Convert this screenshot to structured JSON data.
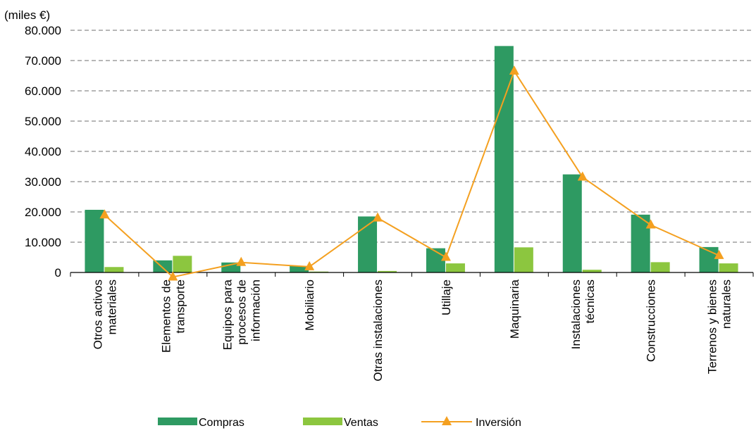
{
  "chart_data": {
    "type": "bar",
    "unit_label": "(miles €)",
    "categories": [
      [
        "Otros activos",
        "materiales"
      ],
      [
        "Elementos de",
        "transporte"
      ],
      [
        "Equipos para",
        "procesos de",
        "información"
      ],
      [
        "Mobiliario"
      ],
      [
        "Otras instalaciones"
      ],
      [
        "Utillaje"
      ],
      [
        "Maquinaria"
      ],
      [
        "Instalaciones",
        "técnicas"
      ],
      [
        "Construcciones"
      ],
      [
        "Terrenos y bienes",
        "naturales"
      ]
    ],
    "ylim": [
      0,
      80000
    ],
    "yticks": [
      0,
      10000,
      20000,
      30000,
      40000,
      50000,
      60000,
      70000,
      80000
    ],
    "ytick_labels": [
      "0",
      "10.000",
      "20.000",
      "30.000",
      "40.000",
      "50.000",
      "60.000",
      "70.000",
      "80.000"
    ],
    "grid": true,
    "legend_position": "bottom",
    "series": [
      {
        "name": "Compras",
        "kind": "bar",
        "color": "#2e9a62",
        "values": [
          20700,
          4000,
          3300,
          2100,
          18500,
          8000,
          74800,
          32400,
          19100,
          8400
        ]
      },
      {
        "name": "Ventas",
        "kind": "bar",
        "color": "#8cc63f",
        "values": [
          1800,
          5500,
          0,
          300,
          500,
          3000,
          8300,
          900,
          3400,
          3000
        ]
      },
      {
        "name": "Inversión",
        "kind": "line",
        "color": "#f4a020",
        "values": [
          19000,
          -1500,
          3300,
          1900,
          18000,
          5000,
          66500,
          31500,
          15700,
          5600
        ]
      }
    ]
  }
}
